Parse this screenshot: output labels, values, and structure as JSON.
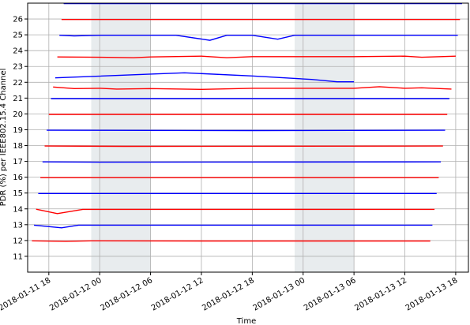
{
  "chart_data": {
    "type": "line",
    "title": "",
    "xlabel": "Time",
    "ylabel": "PDR (%) per IEEE802.15.4 Channel",
    "xlim": [
      "2018-01-11 15:30",
      "2018-01-13 19:30"
    ],
    "ylim": [
      10,
      27
    ],
    "x_ticks": [
      "2018-01-11 18",
      "2018-01-12 00",
      "2018-01-12 06",
      "2018-01-12 12",
      "2018-01-12 18",
      "2018-01-13 00",
      "2018-01-13 06",
      "2018-01-13 12",
      "2018-01-13 18"
    ],
    "y_ticks": [
      11,
      12,
      13,
      14,
      15,
      16,
      17,
      18,
      19,
      20,
      21,
      22,
      23,
      24,
      25,
      26
    ],
    "grid": true,
    "legend": "none",
    "shaded_regions": [
      {
        "start": "2018-01-11 23:00",
        "end": "2018-01-12 06:00",
        "color": "#e8ecee"
      },
      {
        "start": "2018-01-12 23:00",
        "end": "2018-01-13 06:00",
        "color": "#e8ecee"
      }
    ],
    "series": [
      {
        "color": "#ff0000",
        "points": [
          [
            "2018-01-11 16:00",
            11.98
          ],
          [
            "2018-01-11 20:00",
            11.95
          ],
          [
            "2018-01-11 23:00",
            11.98
          ],
          [
            "2018-01-12 12:00",
            11.97
          ],
          [
            "2018-01-13 15:00",
            11.97
          ]
        ]
      },
      {
        "color": "#0000ff",
        "points": [
          [
            "2018-01-11 16:15",
            12.97
          ],
          [
            "2018-01-11 19:30",
            12.8
          ],
          [
            "2018-01-11 21:30",
            12.97
          ],
          [
            "2018-01-13 15:15",
            12.97
          ]
        ]
      },
      {
        "color": "#ff0000",
        "points": [
          [
            "2018-01-11 16:30",
            13.98
          ],
          [
            "2018-01-11 19:00",
            13.7
          ],
          [
            "2018-01-11 22:00",
            13.97
          ],
          [
            "2018-01-13 15:30",
            13.97
          ]
        ]
      },
      {
        "color": "#0000ff",
        "points": [
          [
            "2018-01-11 16:45",
            14.97
          ],
          [
            "2018-01-13 15:45",
            14.97
          ]
        ]
      },
      {
        "color": "#ff0000",
        "points": [
          [
            "2018-01-11 17:00",
            15.97
          ],
          [
            "2018-01-13 16:00",
            15.97
          ]
        ]
      },
      {
        "color": "#0000ff",
        "points": [
          [
            "2018-01-11 17:15",
            16.97
          ],
          [
            "2018-01-12 00:00",
            16.95
          ],
          [
            "2018-01-13 16:15",
            16.97
          ]
        ]
      },
      {
        "color": "#ff0000",
        "points": [
          [
            "2018-01-11 17:30",
            17.97
          ],
          [
            "2018-01-12 03:00",
            17.95
          ],
          [
            "2018-01-13 16:30",
            17.97
          ]
        ]
      },
      {
        "color": "#0000ff",
        "points": [
          [
            "2018-01-11 17:45",
            18.97
          ],
          [
            "2018-01-12 18:00",
            18.95
          ],
          [
            "2018-01-13 16:45",
            18.97
          ]
        ]
      },
      {
        "color": "#ff0000",
        "points": [
          [
            "2018-01-11 18:00",
            19.97
          ],
          [
            "2018-01-13 17:00",
            19.97
          ]
        ]
      },
      {
        "color": "#0000ff",
        "points": [
          [
            "2018-01-11 18:15",
            20.97
          ],
          [
            "2018-01-13 17:15",
            20.97
          ]
        ]
      },
      {
        "color": "#ff0000",
        "points": [
          [
            "2018-01-11 18:30",
            21.7
          ],
          [
            "2018-01-11 21:00",
            21.6
          ],
          [
            "2018-01-12 00:00",
            21.62
          ],
          [
            "2018-01-12 02:00",
            21.57
          ],
          [
            "2018-01-12 06:00",
            21.6
          ],
          [
            "2018-01-12 12:00",
            21.55
          ],
          [
            "2018-01-12 18:00",
            21.62
          ],
          [
            "2018-01-13 06:00",
            21.62
          ],
          [
            "2018-01-13 09:00",
            21.72
          ],
          [
            "2018-01-13 12:00",
            21.62
          ],
          [
            "2018-01-13 14:00",
            21.65
          ],
          [
            "2018-01-13 17:30",
            21.57
          ]
        ]
      },
      {
        "color": "#0000ff",
        "points": [
          [
            "2018-01-11 18:45",
            22.28
          ],
          [
            "2018-01-12 06:00",
            22.52
          ],
          [
            "2018-01-12 10:00",
            22.6
          ],
          [
            "2018-01-12 18:00",
            22.4
          ],
          [
            "2018-01-13 01:00",
            22.18
          ],
          [
            "2018-01-13 04:00",
            22.03
          ],
          [
            "2018-01-13 06:00",
            22.03
          ]
        ]
      },
      {
        "color": "#ff0000",
        "points": [
          [
            "2018-01-11 19:00",
            23.6
          ],
          [
            "2018-01-12 00:00",
            23.58
          ],
          [
            "2018-01-12 04:00",
            23.55
          ],
          [
            "2018-01-12 06:00",
            23.6
          ],
          [
            "2018-01-12 12:00",
            23.65
          ],
          [
            "2018-01-12 15:00",
            23.55
          ],
          [
            "2018-01-12 18:00",
            23.62
          ],
          [
            "2018-01-13 06:00",
            23.62
          ],
          [
            "2018-01-13 12:00",
            23.65
          ],
          [
            "2018-01-13 14:00",
            23.58
          ],
          [
            "2018-01-13 18:00",
            23.65
          ]
        ]
      },
      {
        "color": "#0000ff",
        "points": [
          [
            "2018-01-11 19:15",
            24.97
          ],
          [
            "2018-01-11 21:00",
            24.93
          ],
          [
            "2018-01-12 00:00",
            24.97
          ],
          [
            "2018-01-12 09:00",
            24.97
          ],
          [
            "2018-01-12 13:00",
            24.65
          ],
          [
            "2018-01-12 15:00",
            24.97
          ],
          [
            "2018-01-12 18:00",
            24.97
          ],
          [
            "2018-01-12 21:00",
            24.72
          ],
          [
            "2018-01-12 23:00",
            24.97
          ],
          [
            "2018-01-13 18:15",
            24.97
          ]
        ]
      },
      {
        "color": "#ff0000",
        "points": [
          [
            "2018-01-11 19:30",
            25.97
          ],
          [
            "2018-01-13 18:30",
            25.97
          ]
        ]
      },
      {
        "color": "#0000ff",
        "points": [
          [
            "2018-01-11 19:45",
            26.97
          ],
          [
            "2018-01-13 18:45",
            26.97
          ]
        ]
      }
    ]
  }
}
